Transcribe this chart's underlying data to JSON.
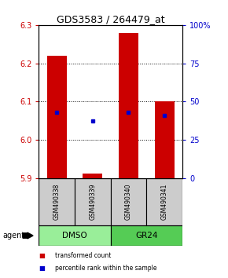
{
  "title": "GDS3583 / 264479_at",
  "samples": [
    "GSM490338",
    "GSM490339",
    "GSM490340",
    "GSM490341"
  ],
  "bar_bottoms": [
    5.9,
    5.9,
    5.9,
    5.9
  ],
  "bar_tops": [
    6.22,
    5.912,
    6.28,
    6.1
  ],
  "blue_y": [
    6.072,
    6.05,
    6.072,
    6.063
  ],
  "ylim": [
    5.9,
    6.3
  ],
  "yticks_left": [
    5.9,
    6.0,
    6.1,
    6.2,
    6.3
  ],
  "yticks_right_pct": [
    0,
    25,
    50,
    75,
    100
  ],
  "bar_color": "#cc0000",
  "blue_color": "#0000cc",
  "groups": [
    {
      "label": "DMSO",
      "samples": [
        0,
        1
      ],
      "color": "#99ee99"
    },
    {
      "label": "GR24",
      "samples": [
        2,
        3
      ],
      "color": "#55cc55"
    }
  ],
  "agent_label": "agent",
  "legend_red": "transformed count",
  "legend_blue": "percentile rank within the sample",
  "sample_box_color": "#cccccc",
  "bar_width": 0.55,
  "tick_fontsize": 7,
  "title_fontsize": 9
}
